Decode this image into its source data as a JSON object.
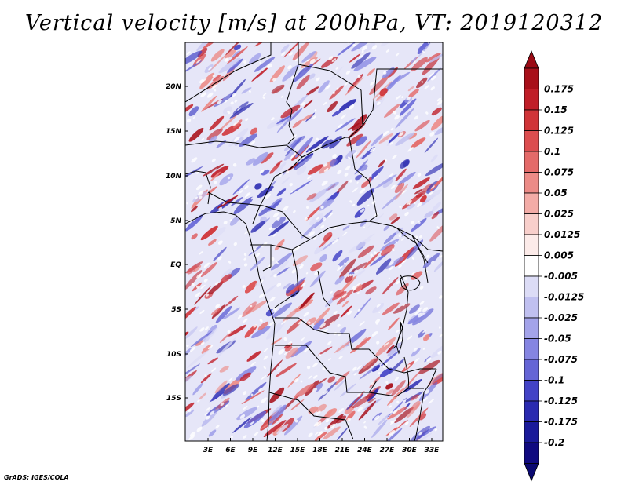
{
  "title": "Vertical velocity [m/s] at 200hPa, VT: 2019120312",
  "credit": "GrADS: IGES/COLA",
  "map": {
    "lat_labels": [
      "20N",
      "15N",
      "10N",
      "5N",
      "EQ",
      "5S",
      "10S",
      "15S"
    ],
    "lon_labels": [
      "3E",
      "6E",
      "9E",
      "12E",
      "15E",
      "18E",
      "21E",
      "24E",
      "27E",
      "30E",
      "33E"
    ]
  },
  "colorbar": {
    "labels": [
      "0.175",
      "0.15",
      "0.125",
      "0.1",
      "0.075",
      "0.05",
      "0.025",
      "0.0125",
      "0.005",
      "-0.005",
      "-0.0125",
      "-0.025",
      "-0.05",
      "-0.075",
      "-0.1",
      "-0.125",
      "-0.175",
      "-0.2"
    ],
    "colors": [
      "#a8101a",
      "#c01e28",
      "#d03438",
      "#dc4d4f",
      "#e46a69",
      "#ec8b87",
      "#f3aca7",
      "#f8cfcb",
      "#fcebe9",
      "#ffffff",
      "#dcdcf6",
      "#c0c0f0",
      "#a3a3ea",
      "#8585e2",
      "#6565d6",
      "#4343c6",
      "#2a2ab0",
      "#1a1a9a",
      "#100a80"
    ],
    "top_arrow_color": "#9a0a14",
    "bottom_arrow_color": "#0a0870"
  },
  "colors": {
    "updraft": "#c8242c",
    "downdraft": "#5050d0",
    "neutral": "#ffffff",
    "borders": "#000000"
  }
}
